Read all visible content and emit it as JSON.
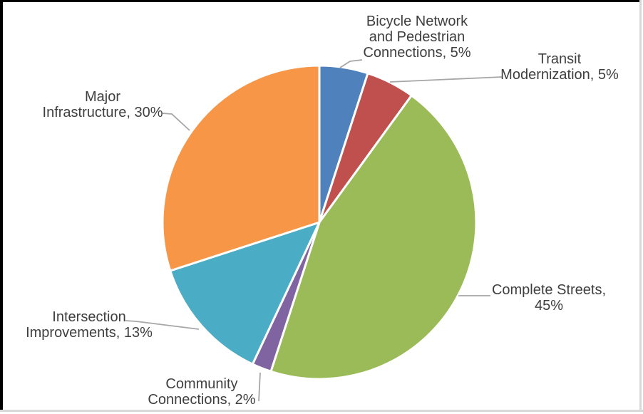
{
  "chart_data": {
    "type": "pie",
    "title": "",
    "units": "%",
    "start_angle_deg": 0,
    "direction": "clockwise",
    "labels_outside": true,
    "legend": "none",
    "slice_border_color": "#FFFFFF",
    "leader_line_color": "#A6A6A6",
    "text_color": "#3F3F3F",
    "segments": [
      {
        "name": "Bicycle Network and Pedestrian Connections",
        "value": 5,
        "color": "#4F81BD",
        "label": "Bicycle Network\nand Pedestrian\nConnections, 5%"
      },
      {
        "name": "Transit Modernization",
        "value": 5,
        "color": "#C0504D",
        "label": "Transit\nModernization, 5%"
      },
      {
        "name": "Complete Streets",
        "value": 45,
        "color": "#9BBB59",
        "label": "Complete Streets,\n45%"
      },
      {
        "name": "Community Connections",
        "value": 2,
        "color": "#8064A2",
        "label": "Community\nConnections, 2%"
      },
      {
        "name": "Intersection Improvements",
        "value": 13,
        "color": "#4BACC6",
        "label": "Intersection\nImprovements, 13%"
      },
      {
        "name": "Major Infrastructure",
        "value": 30,
        "color": "#F79646",
        "label": "Major\nInfrastructure, 30%"
      }
    ]
  }
}
